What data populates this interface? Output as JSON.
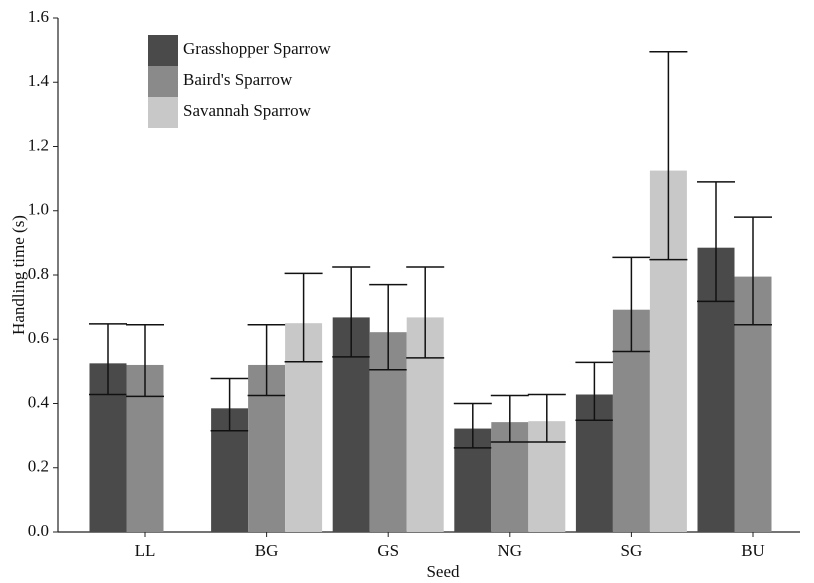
{
  "chart_data": {
    "type": "bar",
    "xlabel": "Seed",
    "ylabel": "Handling time (s)",
    "categories": [
      "LL",
      "BG",
      "GS",
      "NG",
      "SG",
      "BU"
    ],
    "series": [
      {
        "name": "Grasshopper Sparrow",
        "color": "#4a4a4a",
        "values": [
          0.525,
          0.385,
          0.668,
          0.322,
          0.428,
          0.885
        ],
        "lower": [
          0.428,
          0.315,
          0.545,
          0.262,
          0.348,
          0.718
        ],
        "upper": [
          0.648,
          0.478,
          0.825,
          0.4,
          0.528,
          1.09
        ]
      },
      {
        "name": "Baird's Sparrow",
        "color": "#8a8a8a",
        "values": [
          0.52,
          0.52,
          0.622,
          0.342,
          0.692,
          0.795
        ],
        "lower": [
          0.422,
          0.425,
          0.505,
          0.28,
          0.562,
          0.645
        ],
        "upper": [
          0.645,
          0.645,
          0.77,
          0.425,
          0.855,
          0.98
        ]
      },
      {
        "name": "Savannah Sparrow",
        "color": "#c8c8c8",
        "values": [
          null,
          0.65,
          0.668,
          0.345,
          1.125,
          null
        ],
        "lower": [
          null,
          0.53,
          0.542,
          0.28,
          0.848,
          null
        ],
        "upper": [
          null,
          0.805,
          0.825,
          0.428,
          1.495,
          null
        ]
      }
    ],
    "ylim": [
      0,
      1.6
    ],
    "yticks": [
      {
        "value": 0,
        "label": "0.0"
      },
      0.2,
      0.4,
      0.6,
      0.8,
      {
        "value": 1,
        "label": "1.0"
      },
      1.2,
      1.4,
      1.6
    ],
    "legend": "upper left"
  }
}
